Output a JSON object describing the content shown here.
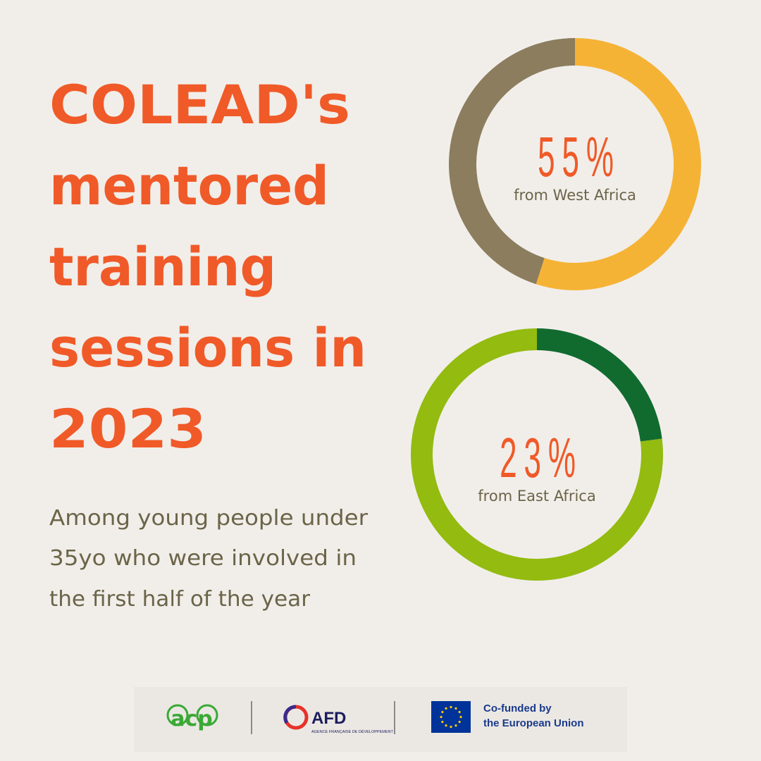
{
  "title_lines": [
    "COLEAD's",
    "mentored",
    "training",
    "sessions in",
    "2023"
  ],
  "subtitle_lines": [
    "Among young people under",
    "35yo who were involved in",
    "the first half of the year"
  ],
  "chart_data": [
    {
      "type": "donut",
      "values": [
        55,
        45
      ],
      "value_labels": [
        "55%",
        null
      ],
      "colors": [
        "#f5b335",
        "#8b7d5e"
      ],
      "caption": "from West Africa"
    },
    {
      "type": "donut",
      "values": [
        23,
        77
      ],
      "value_labels": [
        "23%",
        null
      ],
      "colors": [
        "#116b2f",
        "#93bb10"
      ],
      "caption": "from East Africa"
    }
  ],
  "logos": {
    "acp": "acp",
    "afd": "AFD",
    "afd_sub": "AGENCE FRANÇAISE DE DÉVELOPPEMENT",
    "eu_line1": "Co-funded by",
    "eu_line2": "the European Union"
  }
}
